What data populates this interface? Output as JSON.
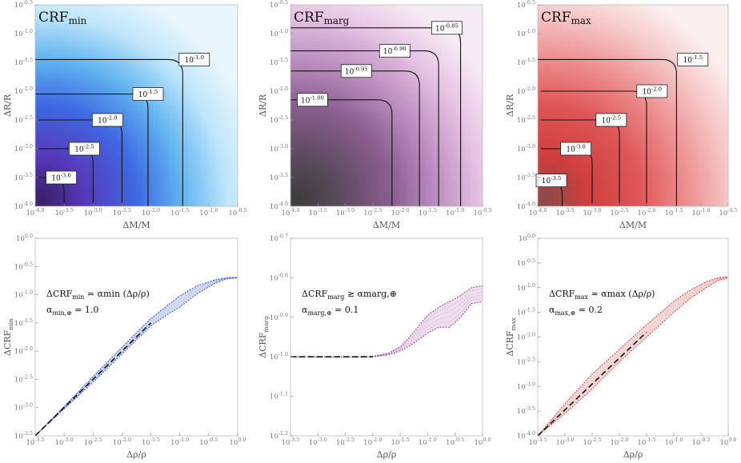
{
  "chart_data": [
    {
      "type": "heatmap",
      "title": "CRF",
      "title_sub": "min",
      "xlabel": "ΔM/M",
      "ylabel": "ΔR/R",
      "xlim": [
        -4.0,
        -0.5
      ],
      "ylim": [
        -4.0,
        -0.5
      ],
      "colormap": [
        "#e8f6fd",
        "#bfe6fb",
        "#62b4f0",
        "#3f69e3",
        "#5638b8",
        "#3a1f6a"
      ],
      "x_ticks": [
        "10^-4.0",
        "10^-3.5",
        "10^-3.0",
        "10^-2.5",
        "10^-2.0",
        "10^-1.5",
        "10^-1.0",
        "10^-0.5"
      ],
      "y_ticks": [
        "10^-4.0",
        "10^-3.5",
        "10^-3.0",
        "10^-2.5",
        "10^-2.0",
        "10^-1.5",
        "10^-1.0",
        "10^-0.5"
      ],
      "contours": [
        {
          "level": "10^-1.0",
          "corner_log": -1.45,
          "label_at": [
            -1.25,
            -1.45
          ]
        },
        {
          "level": "10^-1.5",
          "corner_log": -2.05,
          "label_at": [
            -2.05,
            -2.05
          ]
        },
        {
          "level": "10^-2.0",
          "corner_log": -2.5,
          "label_at": [
            -2.75,
            -2.5
          ]
        },
        {
          "level": "10^-2.5",
          "corner_log": -3.0,
          "label_at": [
            -3.15,
            -3.0
          ]
        },
        {
          "level": "10^-3.0",
          "corner_log": -3.5,
          "label_at": [
            -3.55,
            -3.5
          ]
        }
      ]
    },
    {
      "type": "heatmap",
      "title": "CRF",
      "title_sub": "marg",
      "xlabel": "ΔM/M",
      "ylabel": "ΔR/R",
      "xlim": [
        -4.0,
        -0.5
      ],
      "ylim": [
        -4.0,
        -0.5
      ],
      "colormap": [
        "#f6eaf5",
        "#e6c4e3",
        "#bc8fc0",
        "#8a5f8f",
        "#5a4a5c",
        "#3c3c3c"
      ],
      "x_ticks": [
        "10^-4.0",
        "10^-3.5",
        "10^-3.0",
        "10^-2.5",
        "10^-2.0",
        "10^-1.5",
        "10^-1.0",
        "10^-0.5"
      ],
      "y_ticks": [
        "10^-4.0",
        "10^-3.5",
        "10^-3.0",
        "10^-2.5",
        "10^-2.0",
        "10^-1.5",
        "10^-1.0",
        "10^-0.5"
      ],
      "contours": [
        {
          "level": "10^-0.85",
          "corner_log": -0.9,
          "label_at": [
            -1.15,
            -0.9
          ]
        },
        {
          "level": "10^-0.90",
          "corner_log": -1.3,
          "label_at": [
            -2.1,
            -1.3
          ]
        },
        {
          "level": "10^-0.95",
          "corner_log": -1.65,
          "label_at": [
            -2.8,
            -1.65
          ]
        },
        {
          "level": "10^-1.00",
          "corner_log": -2.15,
          "label_at": [
            -3.6,
            -2.15
          ]
        }
      ]
    },
    {
      "type": "heatmap",
      "title": "CRF",
      "title_sub": "max",
      "xlabel": "ΔM/M",
      "ylabel": "ΔR/R",
      "xlim": [
        -4.0,
        -0.5
      ],
      "ylim": [
        -4.0,
        -0.5
      ],
      "colormap": [
        "#fcefef",
        "#f6c6c6",
        "#ec8d8d",
        "#df5656",
        "#cf3e3e",
        "#8a4a4a"
      ],
      "x_ticks": [
        "10^-4.0",
        "10^-3.5",
        "10^-3.0",
        "10^-2.5",
        "10^-2.0",
        "10^-1.5",
        "10^-1.0",
        "10^-0.5"
      ],
      "y_ticks": [
        "10^-4.0",
        "10^-3.5",
        "10^-3.0",
        "10^-2.5",
        "10^-2.0",
        "10^-1.5",
        "10^-1.0",
        "10^-0.5"
      ],
      "contours": [
        {
          "level": "10^-1.5",
          "corner_log": -1.45,
          "label_at": [
            -1.15,
            -1.45
          ]
        },
        {
          "level": "10^-2.0",
          "corner_log": -2.0,
          "label_at": [
            -1.9,
            -2.0
          ]
        },
        {
          "level": "10^-2.5",
          "corner_log": -2.5,
          "label_at": [
            -2.65,
            -2.5
          ]
        },
        {
          "level": "10^-3.0",
          "corner_log": -3.0,
          "label_at": [
            -3.3,
            -3.0
          ]
        },
        {
          "level": "10^-3.5",
          "corner_log": -3.55,
          "label_at": [
            -3.75,
            -3.55
          ]
        }
      ]
    },
    {
      "type": "line",
      "xlabel": "Δρ/ρ",
      "ylabel": "ΔCRF",
      "ylabel_sub": "min",
      "xlim": [
        -3.5,
        0.0
      ],
      "ylim": [
        -3.5,
        0.0
      ],
      "x_ticks": [
        "10^-3.5",
        "10^-3.0",
        "10^-2.5",
        "10^-2.0",
        "10^-1.5",
        "10^-1.0",
        "10^-0.5",
        "10^0.0"
      ],
      "y_ticks": [
        "10^-3.5",
        "10^-3.0",
        "10^-2.5",
        "10^-2.0",
        "10^-1.5",
        "10^-1.0",
        "10^-0.5",
        "10^0.0"
      ],
      "band_color": "#3a5ad8",
      "annotation": [
        "ΔCRF_min ≃ α_min (Δρ/ρ)",
        "α_min,⊕ = 1.0"
      ],
      "series": [
        {
          "name": "upper",
          "x": [
            -3.5,
            -3.0,
            -2.5,
            -2.0,
            -1.5,
            -1.2,
            -1.0,
            -0.7,
            -0.4,
            -0.2,
            0.0
          ],
          "y": [
            -3.5,
            -2.98,
            -2.45,
            -1.93,
            -1.42,
            -1.18,
            -1.02,
            -0.84,
            -0.74,
            -0.7,
            -0.69
          ]
        },
        {
          "name": "lower",
          "x": [
            -3.5,
            -3.0,
            -2.5,
            -2.0,
            -1.5,
            -1.2,
            -1.0,
            -0.7,
            -0.4,
            -0.2,
            0.0
          ],
          "y": [
            -3.5,
            -3.02,
            -2.55,
            -2.05,
            -1.55,
            -1.34,
            -1.22,
            -0.98,
            -0.8,
            -0.72,
            -0.7
          ]
        },
        {
          "name": "fit",
          "x": [
            -3.5,
            -1.5
          ],
          "y": [
            -3.5,
            -1.5
          ]
        }
      ]
    },
    {
      "type": "line",
      "xlabel": "Δρ/ρ",
      "ylabel": "ΔCRF",
      "ylabel_sub": "marg",
      "xlim": [
        -3.5,
        0.0
      ],
      "ylim": [
        -1.2,
        -0.7
      ],
      "x_ticks": [
        "10^-3.5",
        "10^-3.0",
        "10^-2.5",
        "10^-2.0",
        "10^-1.5",
        "10^-1.0",
        "10^-0.5",
        "10^0.0"
      ],
      "y_ticks": [
        "10^-1.2",
        "10^-1.1",
        "10^-1.0",
        "10^-0.9",
        "10^-0.8",
        "10^-0.7"
      ],
      "band_color": "#a04aa0",
      "annotation": [
        "ΔCRF_marg ≳ α_marg,⊕",
        "α_marg,⊕ = 0.1"
      ],
      "series": [
        {
          "name": "upper",
          "x": [
            -3.5,
            -2.5,
            -2.0,
            -1.7,
            -1.5,
            -1.3,
            -1.0,
            -0.8,
            -0.6,
            -0.4,
            -0.2,
            0.0
          ],
          "y": [
            -1.0,
            -1.0,
            -0.999,
            -0.99,
            -0.975,
            -0.945,
            -0.895,
            -0.875,
            -0.86,
            -0.845,
            -0.825,
            -0.82
          ]
        },
        {
          "name": "lower",
          "x": [
            -3.5,
            -2.5,
            -2.0,
            -1.7,
            -1.5,
            -1.3,
            -1.0,
            -0.8,
            -0.6,
            -0.4,
            -0.2,
            0.0
          ],
          "y": [
            -1.0,
            -1.0,
            -1.0,
            -0.995,
            -0.985,
            -0.97,
            -0.94,
            -0.925,
            -0.925,
            -0.9,
            -0.865,
            -0.86
          ]
        },
        {
          "name": "fit",
          "x": [
            -3.5,
            -2.0
          ],
          "y": [
            -1.0,
            -1.0
          ]
        }
      ]
    },
    {
      "type": "line",
      "xlabel": "Δρ/ρ",
      "ylabel": "ΔCRF",
      "ylabel_sub": "max",
      "xlim": [
        -3.5,
        0.0
      ],
      "ylim": [
        -4.0,
        0.0
      ],
      "x_ticks": [
        "10^-3.5",
        "10^-3.0",
        "10^-2.5",
        "10^-2.0",
        "10^-1.5",
        "10^-1.0",
        "10^-0.5",
        "10^0.0"
      ],
      "y_ticks": [
        "10^-4.0",
        "10^-3.5",
        "10^-3.0",
        "10^-2.5",
        "10^-2.0",
        "10^-1.5",
        "10^-1.0",
        "10^-0.5",
        "10^0.0"
      ],
      "band_color": "#d84a4a",
      "annotation": [
        "ΔCRF_max ≃ α_max (Δρ/ρ)",
        "α_max,⊕ = 0.2"
      ],
      "series": [
        {
          "name": "upper",
          "x": [
            -3.5,
            -3.0,
            -2.5,
            -2.0,
            -1.5,
            -1.0,
            -0.7,
            -0.4,
            -0.2,
            0.0
          ],
          "y": [
            -4.0,
            -3.35,
            -2.75,
            -2.25,
            -1.75,
            -1.28,
            -1.05,
            -0.88,
            -0.8,
            -0.78
          ]
        },
        {
          "name": "lower",
          "x": [
            -3.5,
            -3.0,
            -2.5,
            -2.0,
            -1.5,
            -1.0,
            -0.7,
            -0.4,
            -0.2,
            0.0
          ],
          "y": [
            -4.0,
            -3.55,
            -3.05,
            -2.5,
            -2.0,
            -1.5,
            -1.22,
            -1.0,
            -0.86,
            -0.8
          ]
        },
        {
          "name": "fit",
          "x": [
            -3.5,
            -1.5
          ],
          "y": [
            -4.0,
            -1.9
          ]
        }
      ]
    }
  ]
}
